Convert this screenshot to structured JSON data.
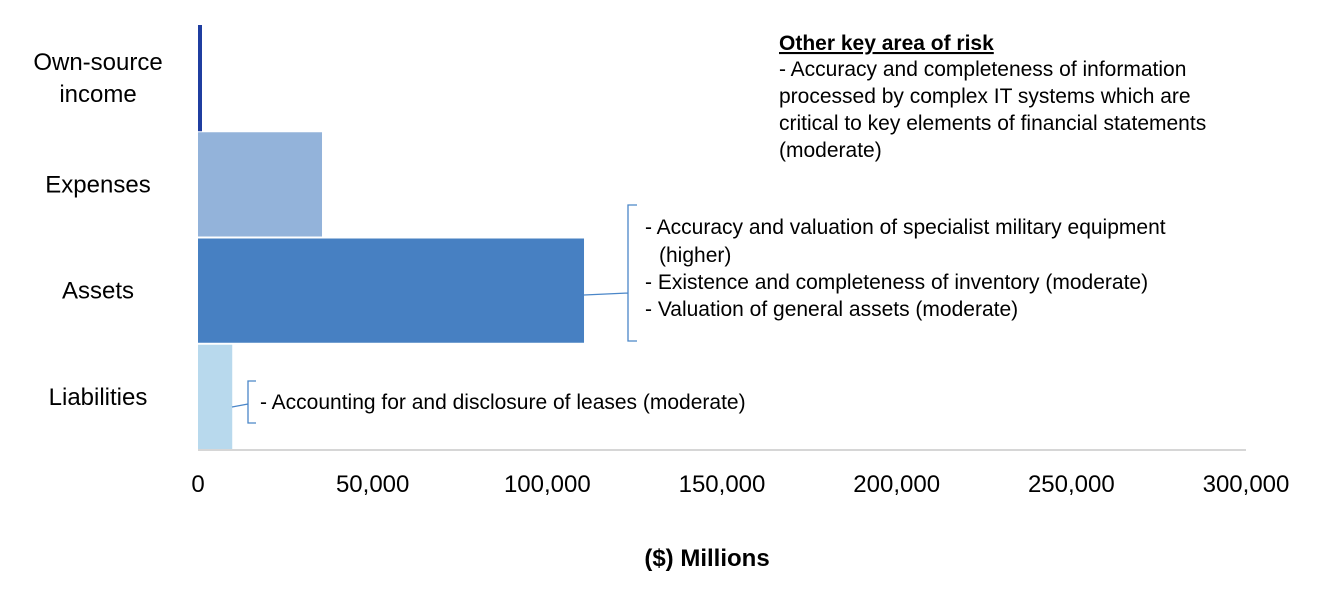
{
  "chart_data": {
    "type": "bar",
    "orientation": "horizontal",
    "categories": [
      "Own-source income",
      "Expenses",
      "Assets",
      "Liabilities"
    ],
    "category_label_lines": [
      [
        "Own-source",
        "income"
      ],
      [
        "Expenses"
      ],
      [
        "Assets"
      ],
      [
        "Liabilities"
      ]
    ],
    "values": [
      500,
      35500,
      110500,
      9800
    ],
    "colors": [
      "#1f3ea0",
      "#93b3da",
      "#4780c2",
      "#b8d9ed"
    ],
    "xlim": [
      0,
      300000
    ],
    "xticks": [
      0,
      50000,
      100000,
      150000,
      200000,
      250000,
      300000
    ],
    "xtick_labels": [
      "0",
      "50,000",
      "100,000",
      "150,000",
      "200,000",
      "250,000",
      "300,000"
    ],
    "xlabel": "($) Millions",
    "grid": false,
    "legend": false,
    "annotations": {
      "other_risk_title": "Other key area of risk",
      "other_risk_lines": [
        "- Accuracy and completeness of information",
        "processed by complex IT systems which are",
        "critical to key elements of financial statements",
        "(moderate)"
      ],
      "assets_risk_lines": [
        "- Accuracy and valuation of specialist military equipment",
        "(higher)",
        "- Existence and completeness of inventory (moderate)",
        "- Valuation of general assets (moderate)"
      ],
      "liabilities_risk_lines": [
        "- Accounting for and disclosure of leases (moderate)"
      ]
    },
    "bracket_color": "#4a86c8"
  }
}
